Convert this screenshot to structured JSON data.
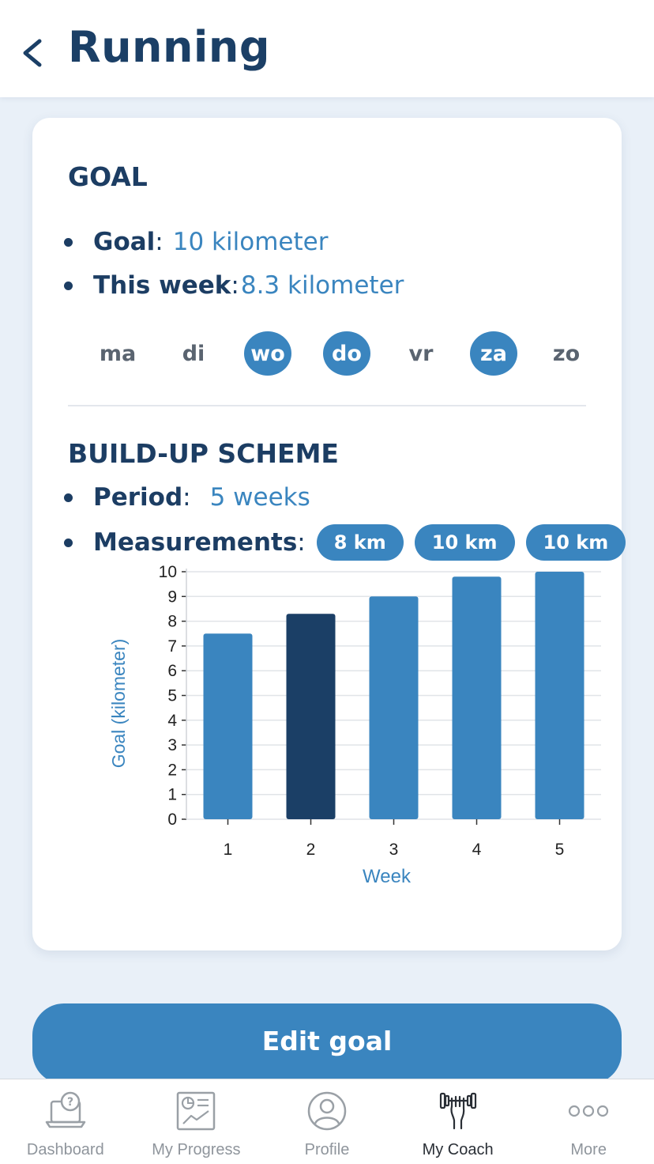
{
  "header": {
    "title": "Running",
    "back_icon": "chevron-left-icon"
  },
  "goal": {
    "title": "GOAL",
    "goal_label": "Goal",
    "goal_value": "10 kilometer",
    "week_label": "This week",
    "week_value": "8.3 kilometer",
    "days": [
      {
        "label": "ma",
        "active": false
      },
      {
        "label": "di",
        "active": false
      },
      {
        "label": "wo",
        "active": true
      },
      {
        "label": "do",
        "active": true
      },
      {
        "label": "vr",
        "active": false
      },
      {
        "label": "za",
        "active": true
      },
      {
        "label": "zo",
        "active": false
      }
    ]
  },
  "scheme": {
    "title": "BUILD-UP SCHEME",
    "period_label": "Period",
    "period_value": "5 weeks",
    "measurements_label": "Measurements",
    "measurements": [
      "8 km",
      "10 km",
      "10 km"
    ]
  },
  "chart_data": {
    "type": "bar",
    "categories": [
      "1",
      "2",
      "3",
      "4",
      "5"
    ],
    "values": [
      7.5,
      8.3,
      9.0,
      9.8,
      10.0
    ],
    "highlight_index": 1,
    "xlabel": "Week",
    "ylabel": "Goal (kilometer)",
    "ylim": [
      0,
      10
    ],
    "yticks": [
      0,
      1,
      2,
      3,
      4,
      5,
      6,
      7,
      8,
      9,
      10
    ],
    "grid": true,
    "colors": {
      "bar": "#3a85bf",
      "highlight": "#1b3f66",
      "axis_label": "#3a85bf"
    }
  },
  "actions": {
    "edit_goal": "Edit goal"
  },
  "tabbar": {
    "items": [
      {
        "label": "Dashboard",
        "icon": "dashboard-help-icon",
        "active": false
      },
      {
        "label": "My Progress",
        "icon": "progress-report-icon",
        "active": false
      },
      {
        "label": "Profile",
        "icon": "profile-user-icon",
        "active": false
      },
      {
        "label": "My Coach",
        "icon": "dumbbell-hand-icon",
        "active": true
      },
      {
        "label": "More",
        "icon": "more-dots-icon",
        "active": false
      }
    ]
  },
  "colors": {
    "primary": "#3a85bf",
    "dark": "#1b3f66",
    "background": "#e9f0f8"
  }
}
